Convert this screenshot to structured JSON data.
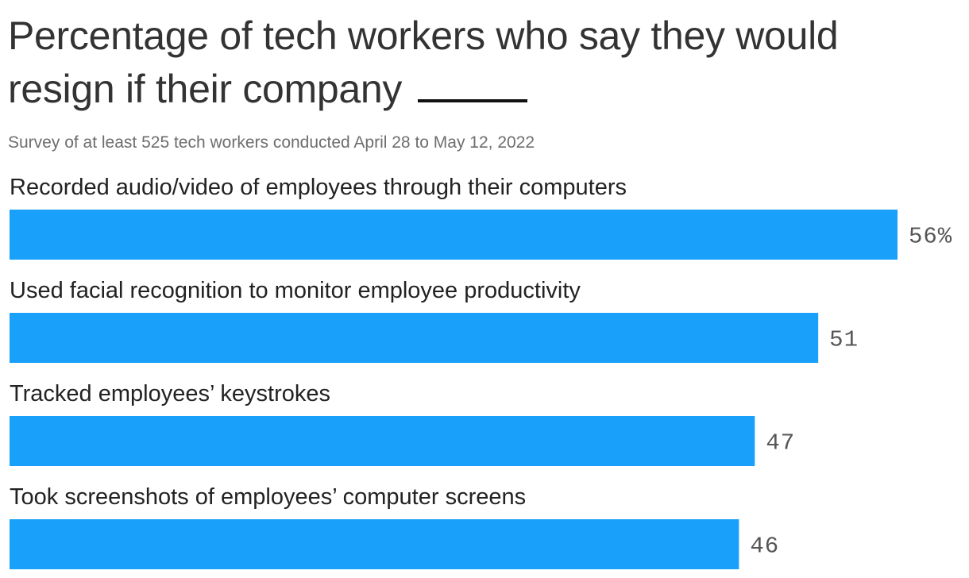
{
  "header": {
    "title": "Percentage of tech workers who say they would resign if their company",
    "subtitle": "Survey of at least 525 tech workers conducted April 28 to May 12, 2022"
  },
  "chart_data": {
    "type": "bar",
    "orientation": "horizontal",
    "title": "Percentage of tech workers who say they would resign if their company",
    "subtitle": "Survey of at least 525 tech workers conducted April 28 to May 12, 2022",
    "categories": [
      "Recorded audio/video of employees through their computers",
      "Used facial recognition to monitor employee productivity",
      "Tracked employees’ keystrokes",
      "Took screenshots of employees’ computer screens"
    ],
    "values": [
      56,
      51,
      47,
      46
    ],
    "value_labels": [
      "56%",
      "51",
      "47",
      "46"
    ],
    "xlim": [
      0,
      56
    ],
    "grid": false,
    "legend": "none",
    "bar_color": "#18a0fb"
  }
}
